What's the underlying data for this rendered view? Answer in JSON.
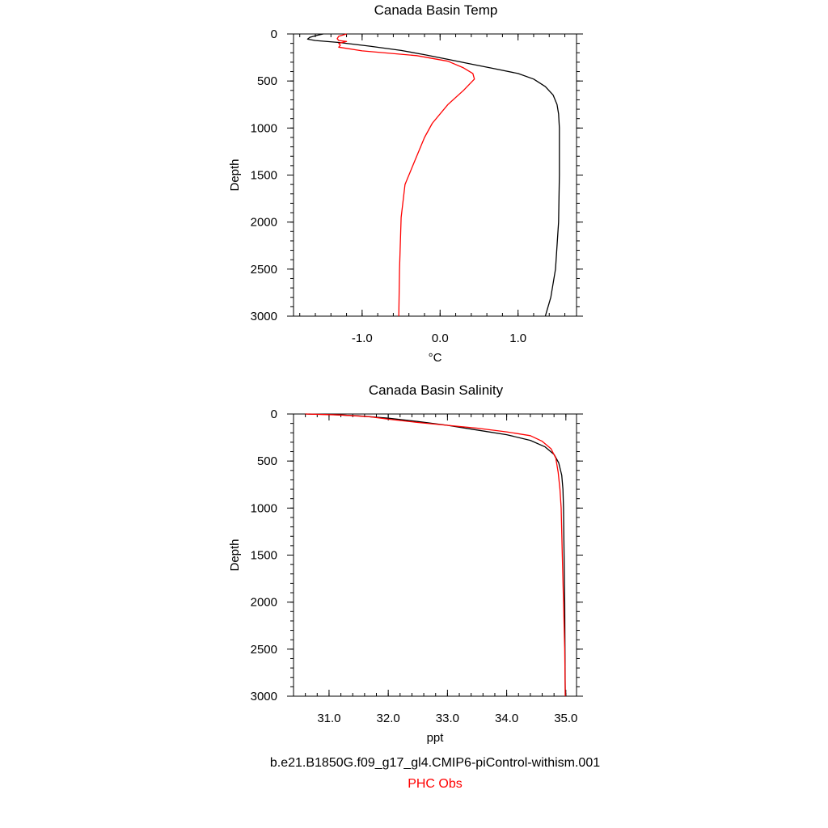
{
  "chart_data": [
    {
      "type": "line",
      "title": "Canada Basin Temp",
      "xlabel": "°C",
      "ylabel": "Depth",
      "xlim": [
        -1.88,
        1.75
      ],
      "ylim": [
        0,
        3000
      ],
      "y_inverted": true,
      "xticks": [
        -1.0,
        0.0,
        1.0
      ],
      "xtick_labels": [
        "-1.0",
        "0.0",
        "1.0"
      ],
      "yticks": [
        0,
        500,
        1000,
        1500,
        2000,
        2500,
        3000
      ],
      "ytick_labels": [
        "0",
        "500",
        "1000",
        "1500",
        "2000",
        "2500",
        "3000"
      ],
      "grid": false,
      "legend": "none",
      "series": [
        {
          "color": "#000000",
          "points": [
            [
              -1.5,
              0
            ],
            [
              -1.58,
              15
            ],
            [
              -1.67,
              35
            ],
            [
              -1.7,
              55
            ],
            [
              -1.6,
              70
            ],
            [
              -1.3,
              90
            ],
            [
              -0.9,
              130
            ],
            [
              -0.5,
              175
            ],
            [
              -0.2,
              220
            ],
            [
              0.1,
              270
            ],
            [
              0.4,
              320
            ],
            [
              0.7,
              370
            ],
            [
              1.0,
              420
            ],
            [
              1.2,
              480
            ],
            [
              1.35,
              560
            ],
            [
              1.45,
              650
            ],
            [
              1.5,
              750
            ],
            [
              1.52,
              850
            ],
            [
              1.53,
              1000
            ],
            [
              1.53,
              1250
            ],
            [
              1.53,
              1500
            ],
            [
              1.52,
              2000
            ],
            [
              1.48,
              2500
            ],
            [
              1.42,
              2800
            ],
            [
              1.35,
              3000
            ]
          ]
        },
        {
          "color": "#ff0000",
          "points": [
            [
              -1.2,
              0
            ],
            [
              -1.3,
              25
            ],
            [
              -1.32,
              50
            ],
            [
              -1.3,
              70
            ],
            [
              -1.2,
              80
            ],
            [
              -1.3,
              100
            ],
            [
              -1.28,
              120
            ],
            [
              -1.3,
              140
            ],
            [
              -1.0,
              180
            ],
            [
              -0.3,
              230
            ],
            [
              0.1,
              290
            ],
            [
              0.3,
              360
            ],
            [
              0.42,
              420
            ],
            [
              0.44,
              480
            ],
            [
              0.3,
              600
            ],
            [
              0.1,
              750
            ],
            [
              -0.1,
              950
            ],
            [
              -0.2,
              1100
            ],
            [
              -0.35,
              1400
            ],
            [
              -0.45,
              1600
            ],
            [
              -0.5,
              1950
            ],
            [
              -0.52,
              2500
            ],
            [
              -0.53,
              3000
            ]
          ]
        }
      ]
    },
    {
      "type": "line",
      "title": "Canada Basin Salinity",
      "xlabel": "ppt",
      "ylabel": "Depth",
      "xlim": [
        30.4,
        35.18
      ],
      "ylim": [
        0,
        3000
      ],
      "y_inverted": true,
      "xticks": [
        31.0,
        32.0,
        33.0,
        34.0,
        35.0
      ],
      "xtick_labels": [
        "31.0",
        "32.0",
        "33.0",
        "34.0",
        "35.0"
      ],
      "yticks": [
        0,
        500,
        1000,
        1500,
        2000,
        2500,
        3000
      ],
      "ytick_labels": [
        "0",
        "500",
        "1000",
        "1500",
        "2000",
        "2500",
        "3000"
      ],
      "grid": false,
      "legend": "none",
      "series": [
        {
          "color": "#000000",
          "points": [
            [
              30.6,
              0
            ],
            [
              31.0,
              5
            ],
            [
              31.5,
              20
            ],
            [
              32.0,
              45
            ],
            [
              32.5,
              80
            ],
            [
              33.0,
              120
            ],
            [
              33.5,
              170
            ],
            [
              34.0,
              220
            ],
            [
              34.4,
              280
            ],
            [
              34.65,
              350
            ],
            [
              34.8,
              430
            ],
            [
              34.88,
              520
            ],
            [
              34.93,
              650
            ],
            [
              34.95,
              800
            ],
            [
              34.96,
              1000
            ],
            [
              34.97,
              1500
            ],
            [
              34.98,
              2000
            ],
            [
              34.985,
              2500
            ],
            [
              34.99,
              3000
            ]
          ]
        },
        {
          "color": "#ff0000",
          "points": [
            [
              30.6,
              0
            ],
            [
              31.2,
              10
            ],
            [
              31.7,
              30
            ],
            [
              32.0,
              55
            ],
            [
              32.5,
              90
            ],
            [
              33.0,
              120
            ],
            [
              33.5,
              150
            ],
            [
              34.0,
              190
            ],
            [
              34.4,
              230
            ],
            [
              34.6,
              290
            ],
            [
              34.75,
              370
            ],
            [
              34.83,
              470
            ],
            [
              34.87,
              620
            ],
            [
              34.9,
              800
            ],
            [
              34.92,
              1000
            ],
            [
              34.94,
              1500
            ],
            [
              34.96,
              2000
            ],
            [
              34.98,
              2500
            ],
            [
              34.99,
              3000
            ]
          ]
        }
      ]
    }
  ],
  "captions": {
    "model": "b.e21.B1850G.f09_g17_gl4.CMIP6-piControl-withism.001",
    "obs": "PHC Obs"
  },
  "colors": {
    "model": "#000000",
    "obs": "#ff0000"
  }
}
